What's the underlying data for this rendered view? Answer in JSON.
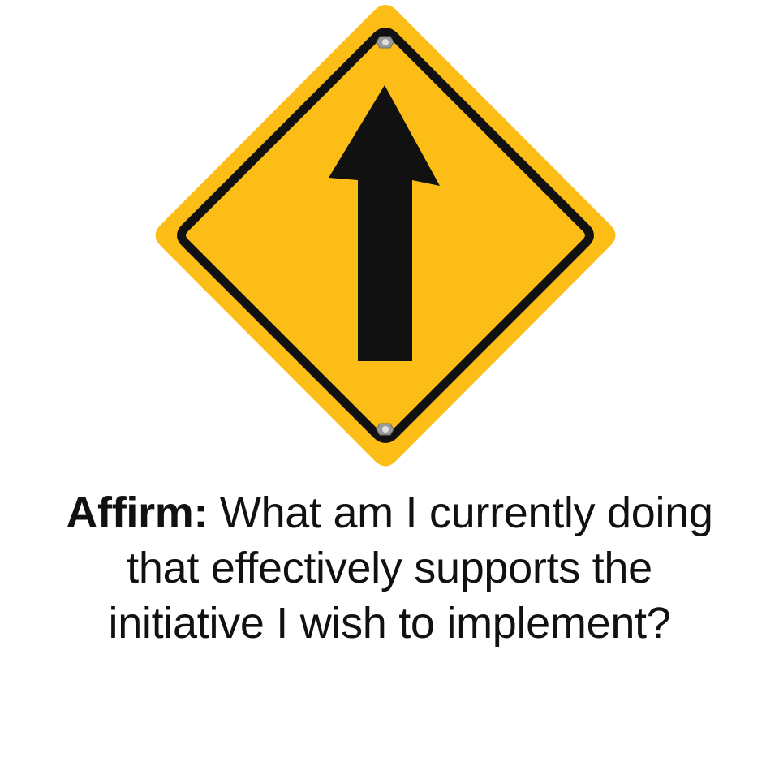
{
  "sign": {
    "icon": "arrow-up-icon",
    "fill_color": "#FBBD16",
    "border_color": "#111111",
    "bolt_color": "#B5B5B5"
  },
  "caption": {
    "lead": "Affirm:",
    "text": "What am I currently doing that effectively supports the initiative I wish to implement?"
  }
}
